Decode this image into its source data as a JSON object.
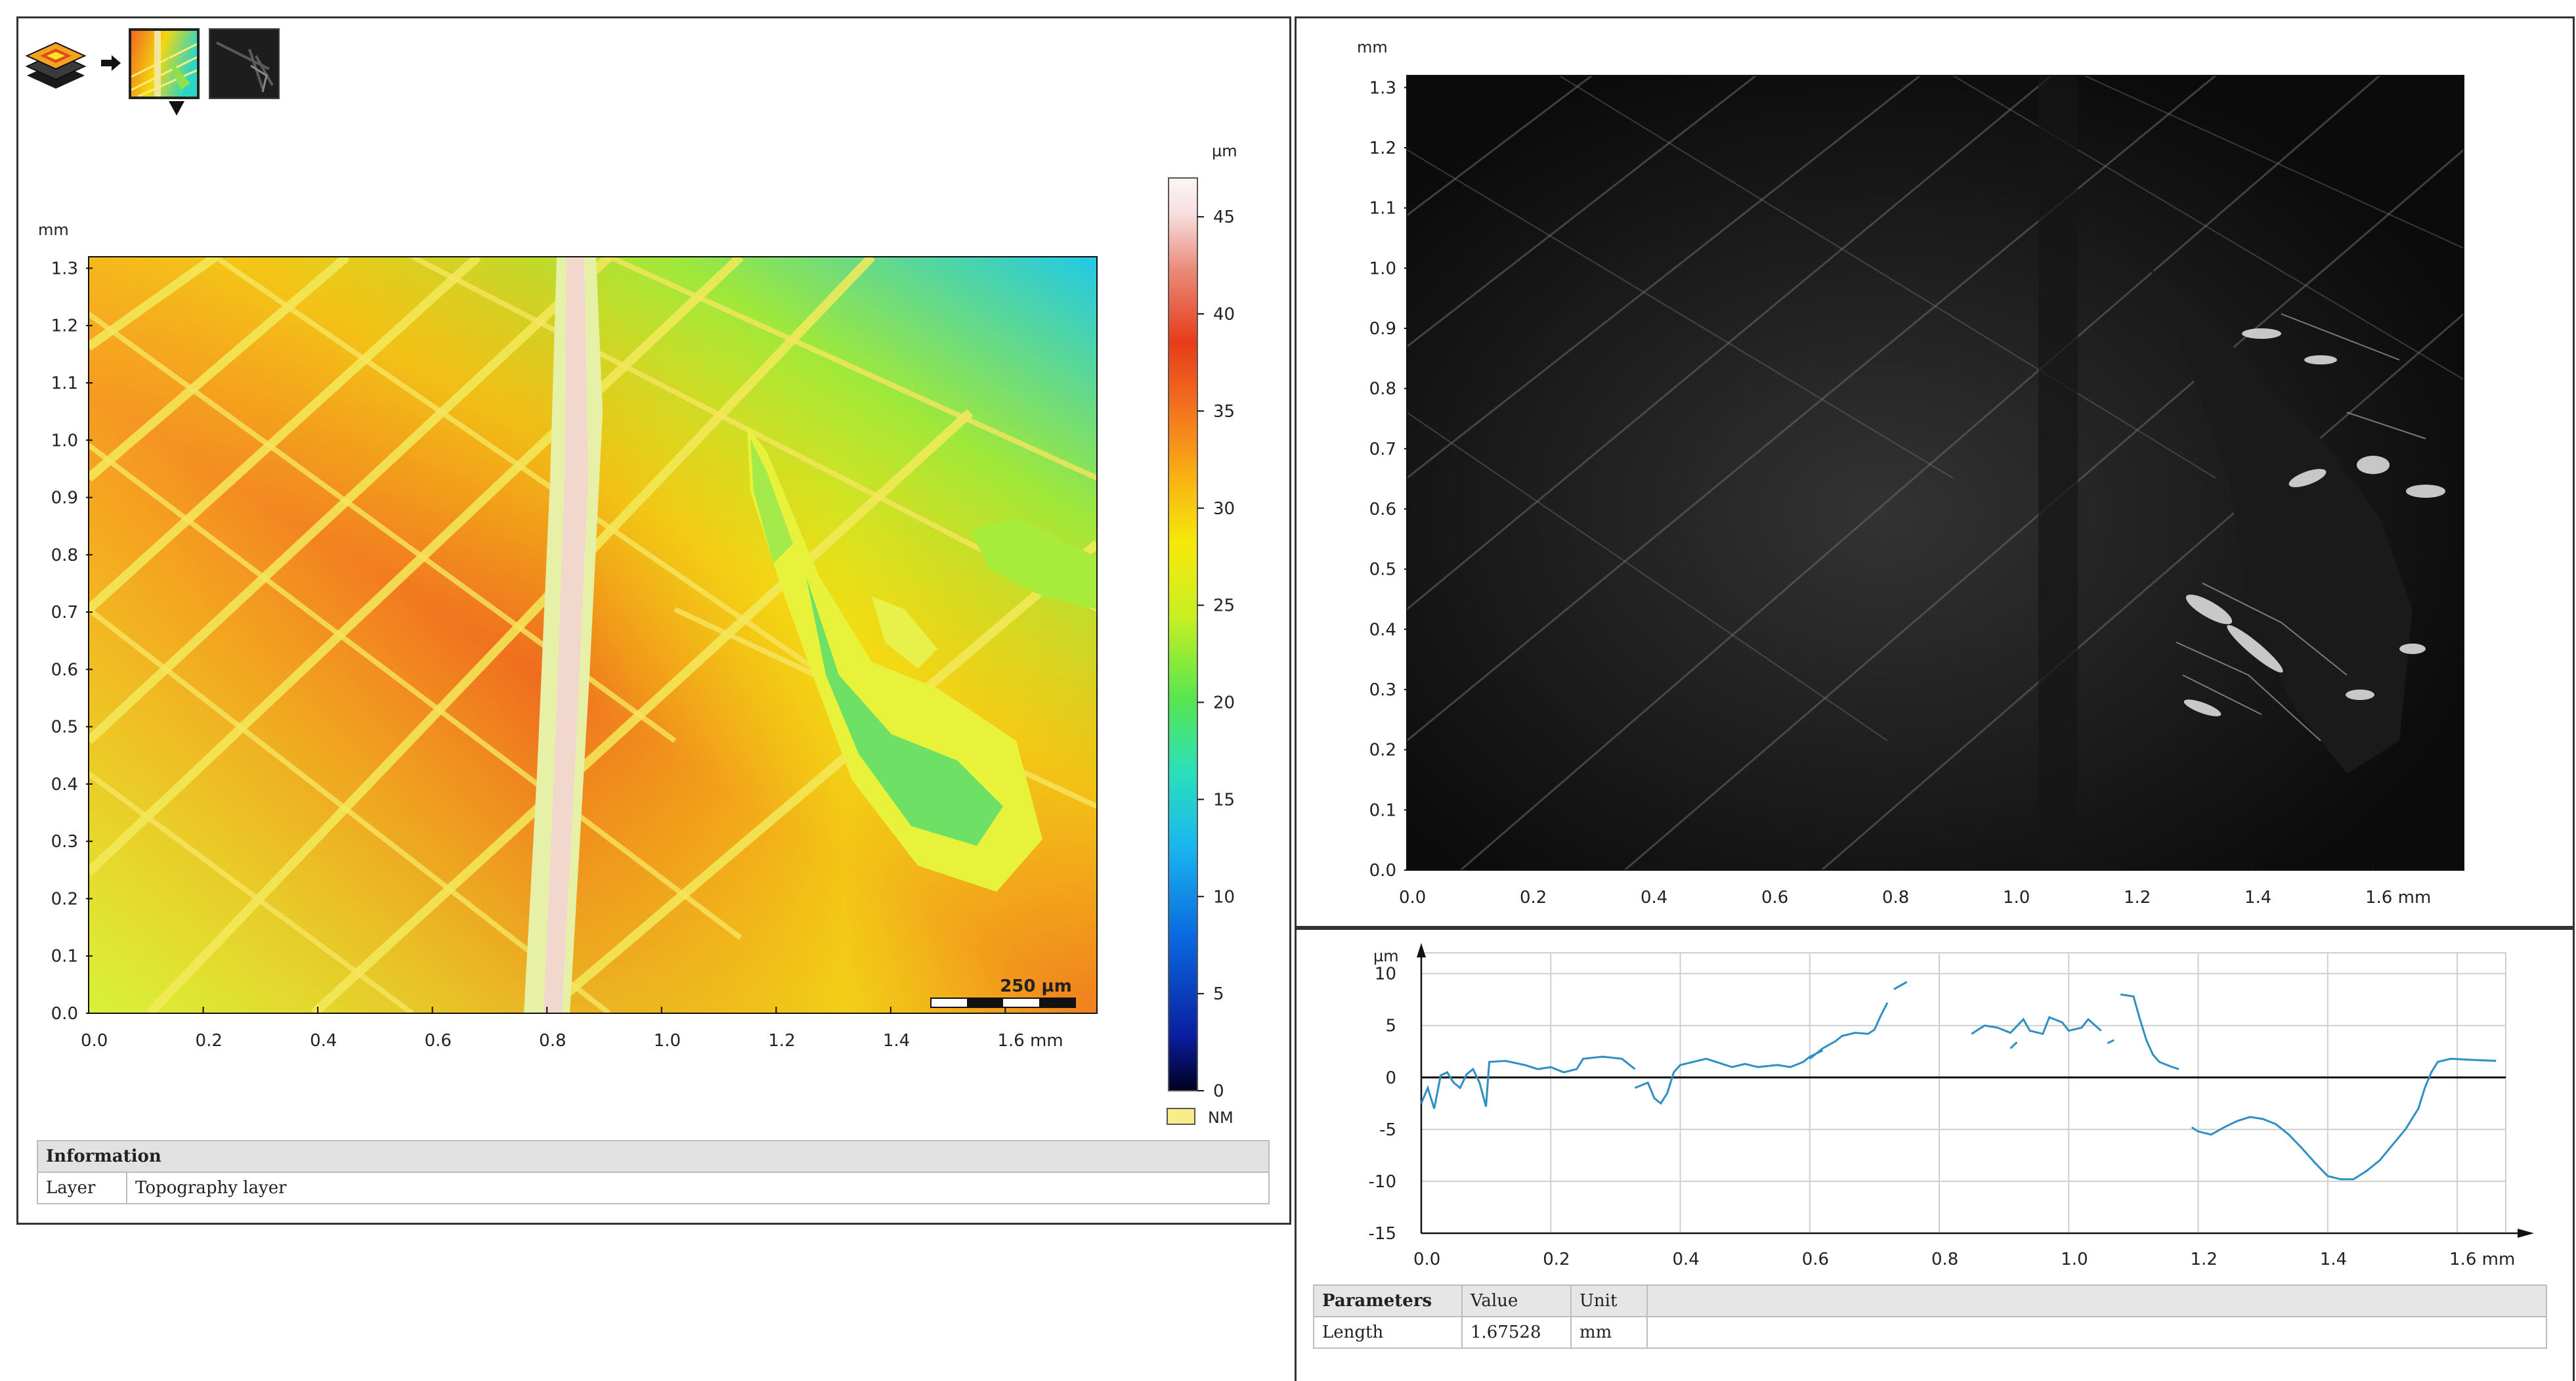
{
  "colors": {
    "colormap": [
      "#000025",
      "#0b1fa3",
      "#0a66e0",
      "#12b6f0",
      "#22e0c8",
      "#4be65c",
      "#b8ef2a",
      "#f4f20a",
      "#f8c210",
      "#f6861e",
      "#ef4b1f",
      "#e23a1a",
      "#f3c8c0",
      "#fbf2f2"
    ],
    "nm_swatch": "#f6ec8a",
    "profile_line": "#2f8fc4",
    "grid": "#cfcfcf"
  },
  "toolbar": {
    "items": [
      {
        "name": "layers-icon"
      },
      {
        "name": "arrow-right-icon"
      },
      {
        "name": "topography-thumbnail",
        "selected": true
      },
      {
        "name": "intensity-thumbnail",
        "selected": false
      }
    ]
  },
  "topography": {
    "y_unit": "mm",
    "x_unit": "mm",
    "y_ticks": [
      "0.0",
      "0.1",
      "0.2",
      "0.3",
      "0.4",
      "0.5",
      "0.6",
      "0.7",
      "0.8",
      "0.9",
      "1.0",
      "1.1",
      "1.2",
      "1.3"
    ],
    "x_ticks": [
      "0.0",
      "0.2",
      "0.4",
      "0.6",
      "0.8",
      "1.0",
      "1.2",
      "1.4",
      "1.6 mm"
    ],
    "scale_bar_label": "250 µm",
    "colorbar": {
      "unit": "µm",
      "ticks": [
        "0",
        "5",
        "10",
        "15",
        "20",
        "25",
        "30",
        "35",
        "40",
        "45"
      ],
      "nm_label": "NM"
    }
  },
  "information": {
    "header": "Information",
    "rows": [
      {
        "label": "Layer",
        "value": "Topography layer"
      }
    ]
  },
  "intensity": {
    "y_unit": "mm",
    "y_ticks": [
      "0.0",
      "0.1",
      "0.2",
      "0.3",
      "0.4",
      "0.5",
      "0.6",
      "0.7",
      "0.8",
      "0.9",
      "1.0",
      "1.1",
      "1.2",
      "1.3"
    ],
    "x_ticks": [
      "0.0",
      "0.2",
      "0.4",
      "0.6",
      "0.8",
      "1.0",
      "1.2",
      "1.4",
      "1.6 mm"
    ]
  },
  "chart_data": {
    "type": "line",
    "title": "",
    "xlabel": "mm",
    "ylabel": "µm",
    "xlim": [
      0,
      1.675
    ],
    "ylim": [
      -15,
      12
    ],
    "x_ticks": [
      "0.0",
      "0.2",
      "0.4",
      "0.6",
      "0.8",
      "1.0",
      "1.2",
      "1.4",
      "1.6 mm"
    ],
    "y_ticks": [
      "-15",
      "-10",
      "-5",
      "0",
      "5",
      "10"
    ],
    "grid": true,
    "series": [
      {
        "segments": [
          [
            [
              0.0,
              -2.5
            ],
            [
              0.01,
              -1.0
            ],
            [
              0.02,
              -3.0
            ],
            [
              0.03,
              0.2
            ],
            [
              0.04,
              0.5
            ],
            [
              0.05,
              -0.5
            ],
            [
              0.06,
              -1.0
            ],
            [
              0.07,
              0.3
            ],
            [
              0.08,
              0.8
            ],
            [
              0.09,
              -0.5
            ],
            [
              0.1,
              -2.8
            ],
            [
              0.105,
              1.5
            ],
            [
              0.13,
              1.6
            ],
            [
              0.16,
              1.2
            ],
            [
              0.18,
              0.8
            ],
            [
              0.2,
              1.0
            ],
            [
              0.22,
              0.5
            ],
            [
              0.24,
              0.8
            ],
            [
              0.25,
              1.8
            ],
            [
              0.28,
              2.0
            ],
            [
              0.31,
              1.8
            ],
            [
              0.33,
              0.8
            ]
          ],
          [
            [
              0.33,
              -1.0
            ],
            [
              0.35,
              -0.5
            ],
            [
              0.36,
              -2.0
            ],
            [
              0.37,
              -2.5
            ],
            [
              0.38,
              -1.5
            ],
            [
              0.39,
              0.5
            ],
            [
              0.4,
              1.2
            ],
            [
              0.42,
              1.5
            ],
            [
              0.44,
              1.8
            ],
            [
              0.46,
              1.4
            ],
            [
              0.48,
              1.0
            ],
            [
              0.5,
              1.3
            ],
            [
              0.52,
              1.0
            ],
            [
              0.55,
              1.2
            ],
            [
              0.57,
              1.0
            ],
            [
              0.59,
              1.5
            ],
            [
              0.6,
              2.0
            ],
            [
              0.62,
              2.6
            ]
          ],
          [
            [
              0.6,
              1.8
            ],
            [
              0.62,
              2.8
            ],
            [
              0.64,
              3.5
            ],
            [
              0.65,
              4.0
            ],
            [
              0.67,
              4.3
            ],
            [
              0.69,
              4.2
            ],
            [
              0.7,
              4.6
            ],
            [
              0.71,
              6.0
            ],
            [
              0.72,
              7.2
            ]
          ],
          [
            [
              0.73,
              8.5
            ],
            [
              0.75,
              9.2
            ]
          ],
          [
            [
              0.85,
              4.2
            ],
            [
              0.87,
              5.0
            ],
            [
              0.89,
              4.8
            ],
            [
              0.91,
              4.3
            ],
            [
              0.93,
              5.6
            ],
            [
              0.94,
              4.5
            ],
            [
              0.96,
              4.2
            ],
            [
              0.97,
              5.8
            ],
            [
              0.99,
              5.3
            ],
            [
              1.0,
              4.5
            ],
            [
              1.02,
              4.8
            ],
            [
              1.03,
              5.6
            ],
            [
              1.05,
              4.5
            ]
          ],
          [
            [
              0.91,
              2.8
            ],
            [
              0.92,
              3.4
            ]
          ],
          [
            [
              1.06,
              3.3
            ],
            [
              1.07,
              3.6
            ]
          ],
          [
            [
              1.08,
              8.0
            ],
            [
              1.1,
              7.8
            ],
            [
              1.11,
              5.6
            ],
            [
              1.12,
              3.6
            ],
            [
              1.13,
              2.2
            ],
            [
              1.14,
              1.5
            ],
            [
              1.16,
              1.0
            ],
            [
              1.17,
              0.8
            ]
          ],
          [
            [
              1.19,
              -4.8
            ],
            [
              1.2,
              -5.2
            ],
            [
              1.22,
              -5.5
            ],
            [
              1.24,
              -4.8
            ],
            [
              1.26,
              -4.2
            ],
            [
              1.28,
              -3.8
            ],
            [
              1.3,
              -4.0
            ],
            [
              1.32,
              -4.5
            ],
            [
              1.34,
              -5.5
            ],
            [
              1.36,
              -6.8
            ],
            [
              1.38,
              -8.2
            ],
            [
              1.4,
              -9.5
            ],
            [
              1.42,
              -9.8
            ],
            [
              1.44,
              -9.8
            ],
            [
              1.46,
              -9.0
            ],
            [
              1.48,
              -8.0
            ],
            [
              1.5,
              -6.5
            ],
            [
              1.52,
              -5.0
            ],
            [
              1.54,
              -3.0
            ],
            [
              1.55,
              -1.0
            ],
            [
              1.56,
              0.5
            ],
            [
              1.57,
              1.5
            ],
            [
              1.59,
              1.8
            ],
            [
              1.62,
              1.7
            ],
            [
              1.66,
              1.6
            ]
          ]
        ]
      }
    ]
  },
  "parameters": {
    "headers": {
      "name": "Parameters",
      "value": "Value",
      "unit": "Unit"
    },
    "rows": [
      {
        "name": "Length",
        "value": "1.67528",
        "unit": "mm"
      }
    ]
  }
}
